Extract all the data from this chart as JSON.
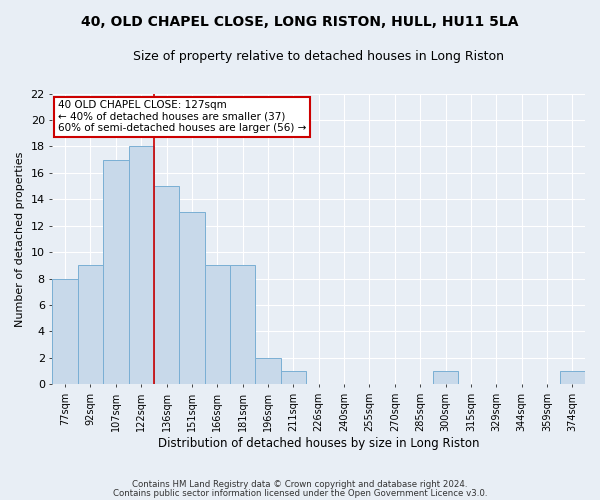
{
  "title": "40, OLD CHAPEL CLOSE, LONG RISTON, HULL, HU11 5LA",
  "subtitle": "Size of property relative to detached houses in Long Riston",
  "xlabel": "Distribution of detached houses by size in Long Riston",
  "ylabel": "Number of detached properties",
  "categories": [
    "77sqm",
    "92sqm",
    "107sqm",
    "122sqm",
    "136sqm",
    "151sqm",
    "166sqm",
    "181sqm",
    "196sqm",
    "211sqm",
    "226sqm",
    "240sqm",
    "255sqm",
    "270sqm",
    "285sqm",
    "300sqm",
    "315sqm",
    "329sqm",
    "344sqm",
    "359sqm",
    "374sqm"
  ],
  "values": [
    8,
    9,
    17,
    18,
    15,
    13,
    9,
    9,
    2,
    1,
    0,
    0,
    0,
    0,
    0,
    1,
    0,
    0,
    0,
    0,
    1
  ],
  "bar_color": "#c8d9ea",
  "bar_edge_color": "#7aafd4",
  "property_label": "40 OLD CHAPEL CLOSE: 127sqm",
  "annotation_line1": "← 40% of detached houses are smaller (37)",
  "annotation_line2": "60% of semi-detached houses are larger (56) →",
  "vline_x_index": 3.5,
  "ylim": [
    0,
    22
  ],
  "yticks": [
    0,
    2,
    4,
    6,
    8,
    10,
    12,
    14,
    16,
    18,
    20,
    22
  ],
  "annotation_box_color": "#ffffff",
  "annotation_box_edge": "#cc0000",
  "vline_color": "#cc0000",
  "bg_color": "#e8eef5",
  "footer1": "Contains HM Land Registry data © Crown copyright and database right 2024.",
  "footer2": "Contains public sector information licensed under the Open Government Licence v3.0."
}
